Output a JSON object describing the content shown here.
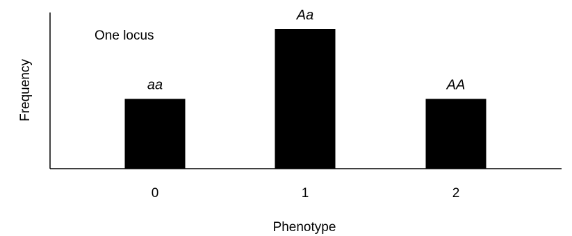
{
  "chart_data": {
    "type": "bar",
    "title": "",
    "annotation": "One locus",
    "xlabel": "Phenotype",
    "ylabel": "Frequency",
    "categories": [
      "0",
      "1",
      "2"
    ],
    "values": [
      0.25,
      0.5,
      0.25
    ],
    "bar_labels": [
      "aa",
      "Aa",
      "AA"
    ],
    "ylim": [
      0,
      0.5
    ],
    "grid": false,
    "legend": "none",
    "bar_color": "#000000"
  }
}
